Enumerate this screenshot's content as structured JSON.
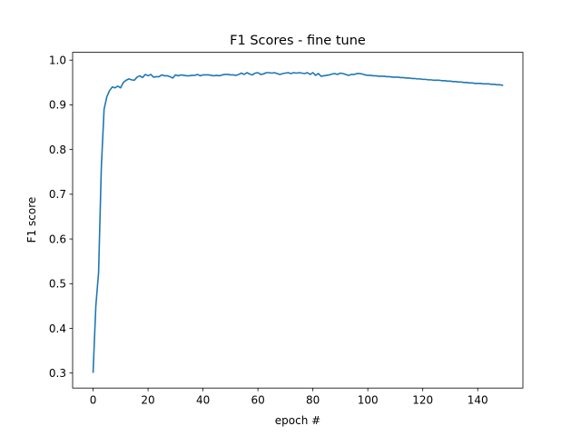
{
  "chart_data": {
    "type": "line",
    "title": "F1 Scores - fine tune",
    "xlabel": "epoch #",
    "ylabel": "F1 score",
    "xlim": [
      -7.45,
      156.45
    ],
    "ylim": [
      0.2665,
      1.0175
    ],
    "xticks": [
      0,
      20,
      40,
      60,
      80,
      100,
      120,
      140
    ],
    "xtick_labels": [
      "0",
      "20",
      "40",
      "60",
      "80",
      "100",
      "120",
      "140"
    ],
    "yticks": [
      0.3,
      0.4,
      0.5,
      0.6,
      0.7,
      0.8,
      0.9,
      1.0
    ],
    "ytick_labels": [
      "0.3",
      "0.4",
      "0.5",
      "0.6",
      "0.7",
      "0.8",
      "0.9",
      "1.0"
    ],
    "grid": false,
    "line_color": "#1f77b4",
    "series": [
      {
        "name": "F1 score",
        "x": [
          0,
          1,
          2,
          3,
          4,
          5,
          6,
          7,
          8,
          9,
          10,
          11,
          12,
          13,
          14,
          15,
          16,
          17,
          18,
          19,
          20,
          21,
          22,
          23,
          24,
          25,
          26,
          27,
          28,
          29,
          30,
          31,
          32,
          33,
          34,
          35,
          36,
          37,
          38,
          39,
          40,
          41,
          42,
          43,
          44,
          45,
          46,
          47,
          48,
          49,
          50,
          51,
          52,
          53,
          54,
          55,
          56,
          57,
          58,
          59,
          60,
          61,
          62,
          63,
          64,
          65,
          66,
          67,
          68,
          69,
          70,
          71,
          72,
          73,
          74,
          75,
          76,
          77,
          78,
          79,
          80,
          81,
          82,
          83,
          84,
          85,
          86,
          87,
          88,
          89,
          90,
          91,
          92,
          93,
          94,
          95,
          96,
          97,
          98,
          99,
          100,
          101,
          102,
          103,
          104,
          105,
          106,
          107,
          108,
          109,
          110,
          111,
          112,
          113,
          114,
          115,
          116,
          117,
          118,
          119,
          120,
          121,
          122,
          123,
          124,
          125,
          126,
          127,
          128,
          129,
          130,
          131,
          132,
          133,
          134,
          135,
          136,
          137,
          138,
          139,
          140,
          141,
          142,
          143,
          144,
          145,
          146,
          147,
          148,
          149
        ],
        "values": [
          0.302,
          0.45,
          0.525,
          0.76,
          0.89,
          0.918,
          0.932,
          0.94,
          0.938,
          0.942,
          0.938,
          0.95,
          0.955,
          0.958,
          0.956,
          0.955,
          0.962,
          0.965,
          0.961,
          0.968,
          0.965,
          0.968,
          0.962,
          0.963,
          0.963,
          0.967,
          0.965,
          0.965,
          0.963,
          0.96,
          0.967,
          0.965,
          0.967,
          0.966,
          0.965,
          0.965,
          0.966,
          0.966,
          0.968,
          0.965,
          0.967,
          0.967,
          0.967,
          0.966,
          0.965,
          0.966,
          0.965,
          0.967,
          0.968,
          0.968,
          0.967,
          0.967,
          0.966,
          0.968,
          0.971,
          0.968,
          0.972,
          0.969,
          0.967,
          0.971,
          0.972,
          0.968,
          0.969,
          0.972,
          0.972,
          0.971,
          0.972,
          0.97,
          0.968,
          0.97,
          0.971,
          0.972,
          0.97,
          0.972,
          0.971,
          0.972,
          0.971,
          0.97,
          0.972,
          0.968,
          0.972,
          0.966,
          0.97,
          0.964,
          0.965,
          0.966,
          0.967,
          0.969,
          0.97,
          0.968,
          0.971,
          0.97,
          0.968,
          0.966,
          0.968,
          0.968,
          0.97,
          0.97,
          0.969,
          0.967,
          0.966,
          0.966,
          0.965,
          0.965,
          0.964,
          0.964,
          0.964,
          0.963,
          0.963,
          0.962,
          0.962,
          0.962,
          0.961,
          0.961,
          0.96,
          0.96,
          0.959,
          0.959,
          0.958,
          0.958,
          0.957,
          0.957,
          0.956,
          0.956,
          0.955,
          0.955,
          0.955,
          0.954,
          0.954,
          0.953,
          0.953,
          0.952,
          0.952,
          0.951,
          0.951,
          0.95,
          0.95,
          0.949,
          0.949,
          0.948,
          0.948,
          0.948,
          0.947,
          0.947,
          0.947,
          0.946,
          0.946,
          0.945,
          0.945,
          0.944
        ]
      }
    ]
  }
}
